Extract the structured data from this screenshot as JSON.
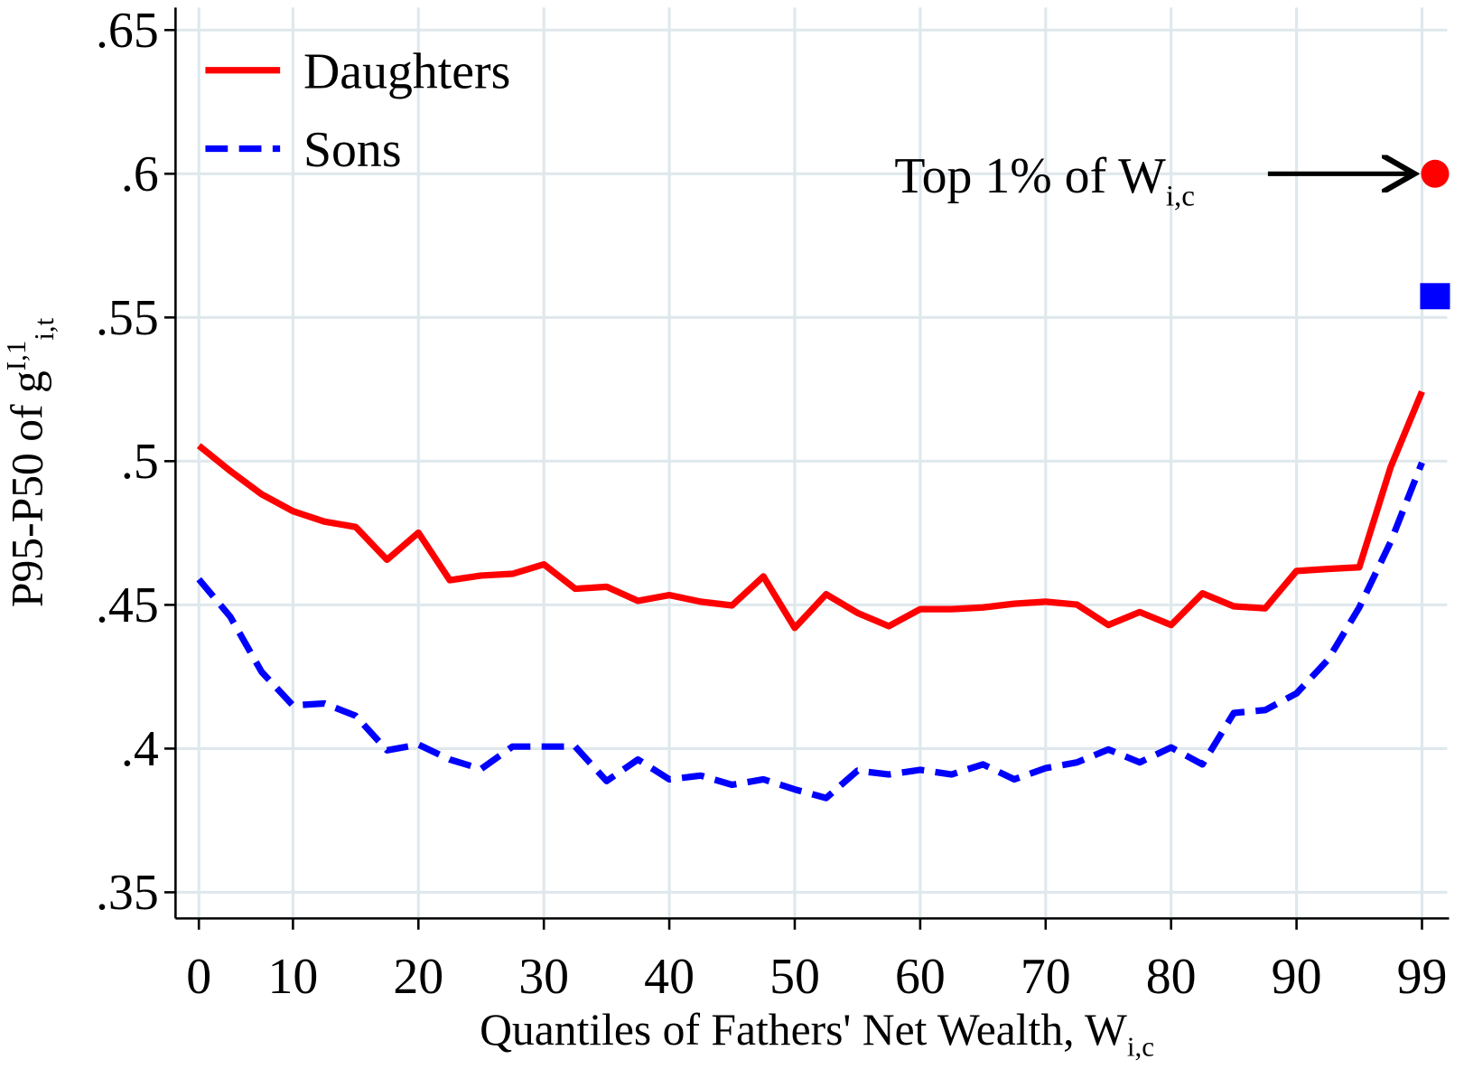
{
  "chart_data": {
    "type": "line",
    "x_label": "Quantiles of Fathers' Net Wealth, W",
    "x_label_sub": "i,c",
    "y_label": "P95-P50 of g",
    "y_label_sup": "I,1",
    "y_label_sub": "i,t",
    "categories": [
      "0",
      null,
      null,
      "10",
      null,
      null,
      null,
      "20",
      null,
      null,
      null,
      "30",
      null,
      null,
      null,
      "40",
      null,
      null,
      null,
      "50",
      null,
      null,
      null,
      "60",
      null,
      null,
      null,
      "70",
      null,
      null,
      null,
      "80",
      null,
      null,
      null,
      "90",
      null,
      null,
      null,
      "99"
    ],
    "series": [
      {
        "name": "Daughters",
        "color": "#ff0000",
        "dashed": false,
        "marker": "circle",
        "top_value": 0.6,
        "values": [
          0.5054,
          0.4966,
          0.4885,
          0.4826,
          0.479,
          0.4771,
          0.4657,
          0.4751,
          0.4586,
          0.4602,
          0.4608,
          0.4641,
          0.4556,
          0.4563,
          0.4514,
          0.4534,
          0.4511,
          0.4498,
          0.4599,
          0.442,
          0.4537,
          0.4472,
          0.4426,
          0.4485,
          0.4485,
          0.4491,
          0.4504,
          0.4511,
          0.4501,
          0.443,
          0.4475,
          0.443,
          0.454,
          0.4495,
          0.4488,
          0.4618,
          0.4625,
          0.4631,
          0.4979,
          0.5242
        ]
      },
      {
        "name": "Sons",
        "color": "#0000ff",
        "dashed": true,
        "marker": "square",
        "top_value": 0.5574,
        "values": [
          0.4589,
          0.4459,
          0.4267,
          0.415,
          0.4157,
          0.4114,
          0.3994,
          0.4014,
          0.3962,
          0.3929,
          0.4007,
          0.4007,
          0.4007,
          0.3887,
          0.3962,
          0.3893,
          0.3906,
          0.3874,
          0.3893,
          0.3858,
          0.3828,
          0.3923,
          0.391,
          0.3926,
          0.391,
          0.3945,
          0.3893,
          0.3932,
          0.3952,
          0.3997,
          0.3952,
          0.4004,
          0.3945,
          0.4124,
          0.4134,
          0.4192,
          0.4309,
          0.4491,
          0.4719,
          0.4995
        ]
      }
    ],
    "annotation": {
      "text": "Top 1% of W",
      "sub": "i,c"
    },
    "ylim": [
      0.35,
      0.65
    ],
    "yticks": [
      {
        "value": 0.35,
        "label": ".35"
      },
      {
        "value": 0.4,
        "label": ".4"
      },
      {
        "value": 0.45,
        "label": ".45"
      },
      {
        "value": 0.5,
        "label": ".5"
      },
      {
        "value": 0.55,
        "label": ".55"
      },
      {
        "value": 0.6,
        "label": ".6"
      },
      {
        "value": 0.65,
        "label": ".65"
      }
    ],
    "grid": true,
    "legend": "upper left"
  }
}
